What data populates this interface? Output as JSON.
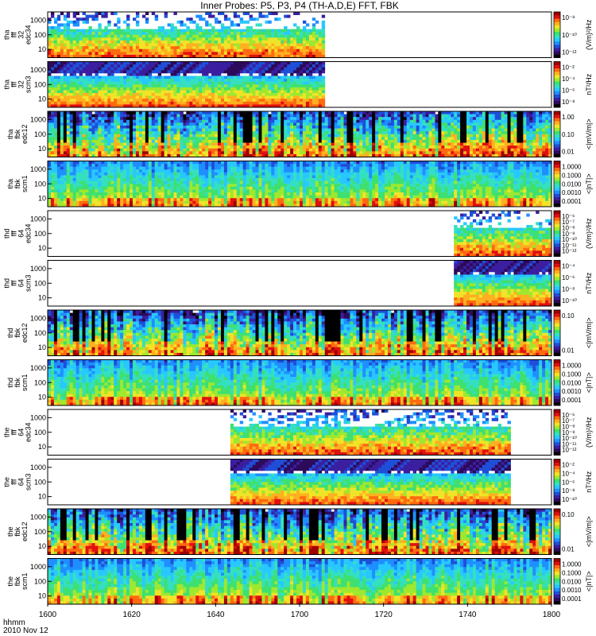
{
  "chart_data": {
    "type": "heatmap",
    "title": "Inner Probes: P5, P3, P4 (TH-A,D,E) FFT, FBK",
    "x_axis": {
      "range": [
        "1600",
        "1800"
      ],
      "tick_labels": [
        "1600",
        "1620",
        "1640",
        "1700",
        "1720",
        "1740",
        "1800"
      ],
      "label": "hhmm",
      "date": "2010 Nov 12"
    },
    "panels": [
      {
        "label": [
          "tha",
          "fff",
          "32",
          "edc34"
        ],
        "y_ticks": [
          "1000",
          "100",
          "10"
        ],
        "y_scale": "log",
        "colorbar_ticks": [
          "10⁻⁸",
          "10⁻¹⁰",
          "10⁻¹²"
        ],
        "colorbar_label": "(V/m)²/Hz",
        "data_span": [
          0,
          0.55
        ],
        "style": "fft_e"
      },
      {
        "label": [
          "tha",
          "fff",
          "32",
          "scm3"
        ],
        "y_ticks": [
          "1000",
          "100",
          "10"
        ],
        "y_scale": "log",
        "colorbar_ticks": [
          "10⁻²",
          "10⁻⁴",
          "10⁻⁶",
          "10⁻⁸"
        ],
        "colorbar_label": "nT²/Hz",
        "data_span": [
          0,
          0.55
        ],
        "style": "fft_b"
      },
      {
        "label": [
          "tha",
          "fbk",
          "edc12"
        ],
        "y_ticks": [
          "1000",
          "100",
          "10"
        ],
        "y_scale": "log",
        "colorbar_ticks": [
          "1.00",
          "0.10",
          "0.01"
        ],
        "colorbar_label": "<|mV/m|>",
        "data_span": [
          0,
          1
        ],
        "style": "fbk_e"
      },
      {
        "label": [
          "tha",
          "fbk",
          "scm1"
        ],
        "y_ticks": [
          "1000",
          "100",
          "10"
        ],
        "y_scale": "log",
        "colorbar_ticks": [
          "1.0000",
          "0.1000",
          "0.0100",
          "0.0010",
          "0.0001"
        ],
        "colorbar_label": "<|nT|>",
        "data_span": [
          0,
          1
        ],
        "style": "fbk_b"
      },
      {
        "label": [
          "thd",
          "fff",
          "64",
          "edc34"
        ],
        "y_ticks": [
          "1000",
          "100",
          "10"
        ],
        "y_scale": "log",
        "colorbar_ticks": [
          "10⁻⁶",
          "10⁻⁷",
          "10⁻⁸",
          "10⁻⁹",
          "10⁻¹⁰",
          "10⁻¹¹",
          "10⁻¹²"
        ],
        "colorbar_label": "(V/m)²/Hz",
        "data_span": [
          0.805,
          1
        ],
        "style": "fft_e"
      },
      {
        "label": [
          "thd",
          "fff",
          "64",
          "scm3"
        ],
        "y_ticks": [
          "1000",
          "100",
          "10"
        ],
        "y_scale": "log",
        "colorbar_ticks": [
          "10⁻⁴",
          "10⁻⁶",
          "10⁻⁸",
          "10⁻¹⁰"
        ],
        "colorbar_label": "nT²/Hz",
        "data_span": [
          0.805,
          1
        ],
        "style": "fft_b"
      },
      {
        "label": [
          "thd",
          "fbk",
          "edc12"
        ],
        "y_ticks": [
          "1000",
          "100",
          "10"
        ],
        "y_scale": "log",
        "colorbar_ticks": [
          "0.10",
          "0.01"
        ],
        "colorbar_label": "<|mV/m|>",
        "data_span": [
          0,
          1
        ],
        "style": "fbk_e"
      },
      {
        "label": [
          "thd",
          "fbk",
          "scm1"
        ],
        "y_ticks": [
          "1000",
          "100",
          "10"
        ],
        "y_scale": "log",
        "colorbar_ticks": [
          "1.0000",
          "0.1000",
          "0.0100",
          "0.0010",
          "0.0001"
        ],
        "colorbar_label": "<|nT|>",
        "data_span": [
          0,
          1
        ],
        "style": "fbk_b"
      },
      {
        "label": [
          "the",
          "fff",
          "64",
          "edc34"
        ],
        "y_ticks": [
          "1000",
          "100",
          "10"
        ],
        "y_scale": "log",
        "colorbar_ticks": [
          "10⁻⁶",
          "10⁻⁷",
          "10⁻⁸",
          "10⁻⁹",
          "10⁻¹⁰",
          "10⁻¹¹",
          "10⁻¹²"
        ],
        "colorbar_label": "(V/m)²/Hz",
        "data_span": [
          0.36,
          0.92
        ],
        "style": "fft_e"
      },
      {
        "label": [
          "the",
          "fff",
          "64",
          "scm3"
        ],
        "y_ticks": [
          "1000",
          "100",
          "10"
        ],
        "y_scale": "log",
        "colorbar_ticks": [
          "10⁻²",
          "10⁻⁴",
          "10⁻⁶",
          "10⁻⁸",
          "10⁻¹⁰"
        ],
        "colorbar_label": "nT²/Hz",
        "data_span": [
          0.36,
          0.92
        ],
        "style": "fft_b"
      },
      {
        "label": [
          "the",
          "fbk",
          "edc12"
        ],
        "y_ticks": [
          "1000",
          "100",
          "10"
        ],
        "y_scale": "log",
        "colorbar_ticks": [
          "0.10",
          "0.01"
        ],
        "colorbar_label": "<|mV/m|>",
        "data_span": [
          0,
          1
        ],
        "style": "fbk_e"
      },
      {
        "label": [
          "the",
          "fbk",
          "scm1"
        ],
        "y_ticks": [
          "1000",
          "100",
          "10"
        ],
        "y_scale": "log",
        "colorbar_ticks": [
          "1.0000",
          "0.1000",
          "0.0100",
          "0.0010",
          "0.0001"
        ],
        "colorbar_label": "<|nT|>",
        "data_span": [
          0,
          1
        ],
        "style": "fbk_b"
      }
    ],
    "colormap": [
      "#000000",
      "#2d0a5a",
      "#3b1fa0",
      "#1f4fd8",
      "#1f8fff",
      "#28c8ff",
      "#34e0c0",
      "#3ee070",
      "#9ee830",
      "#f0e428",
      "#ffb020",
      "#ff6a10",
      "#e01010",
      "#a00000"
    ]
  }
}
